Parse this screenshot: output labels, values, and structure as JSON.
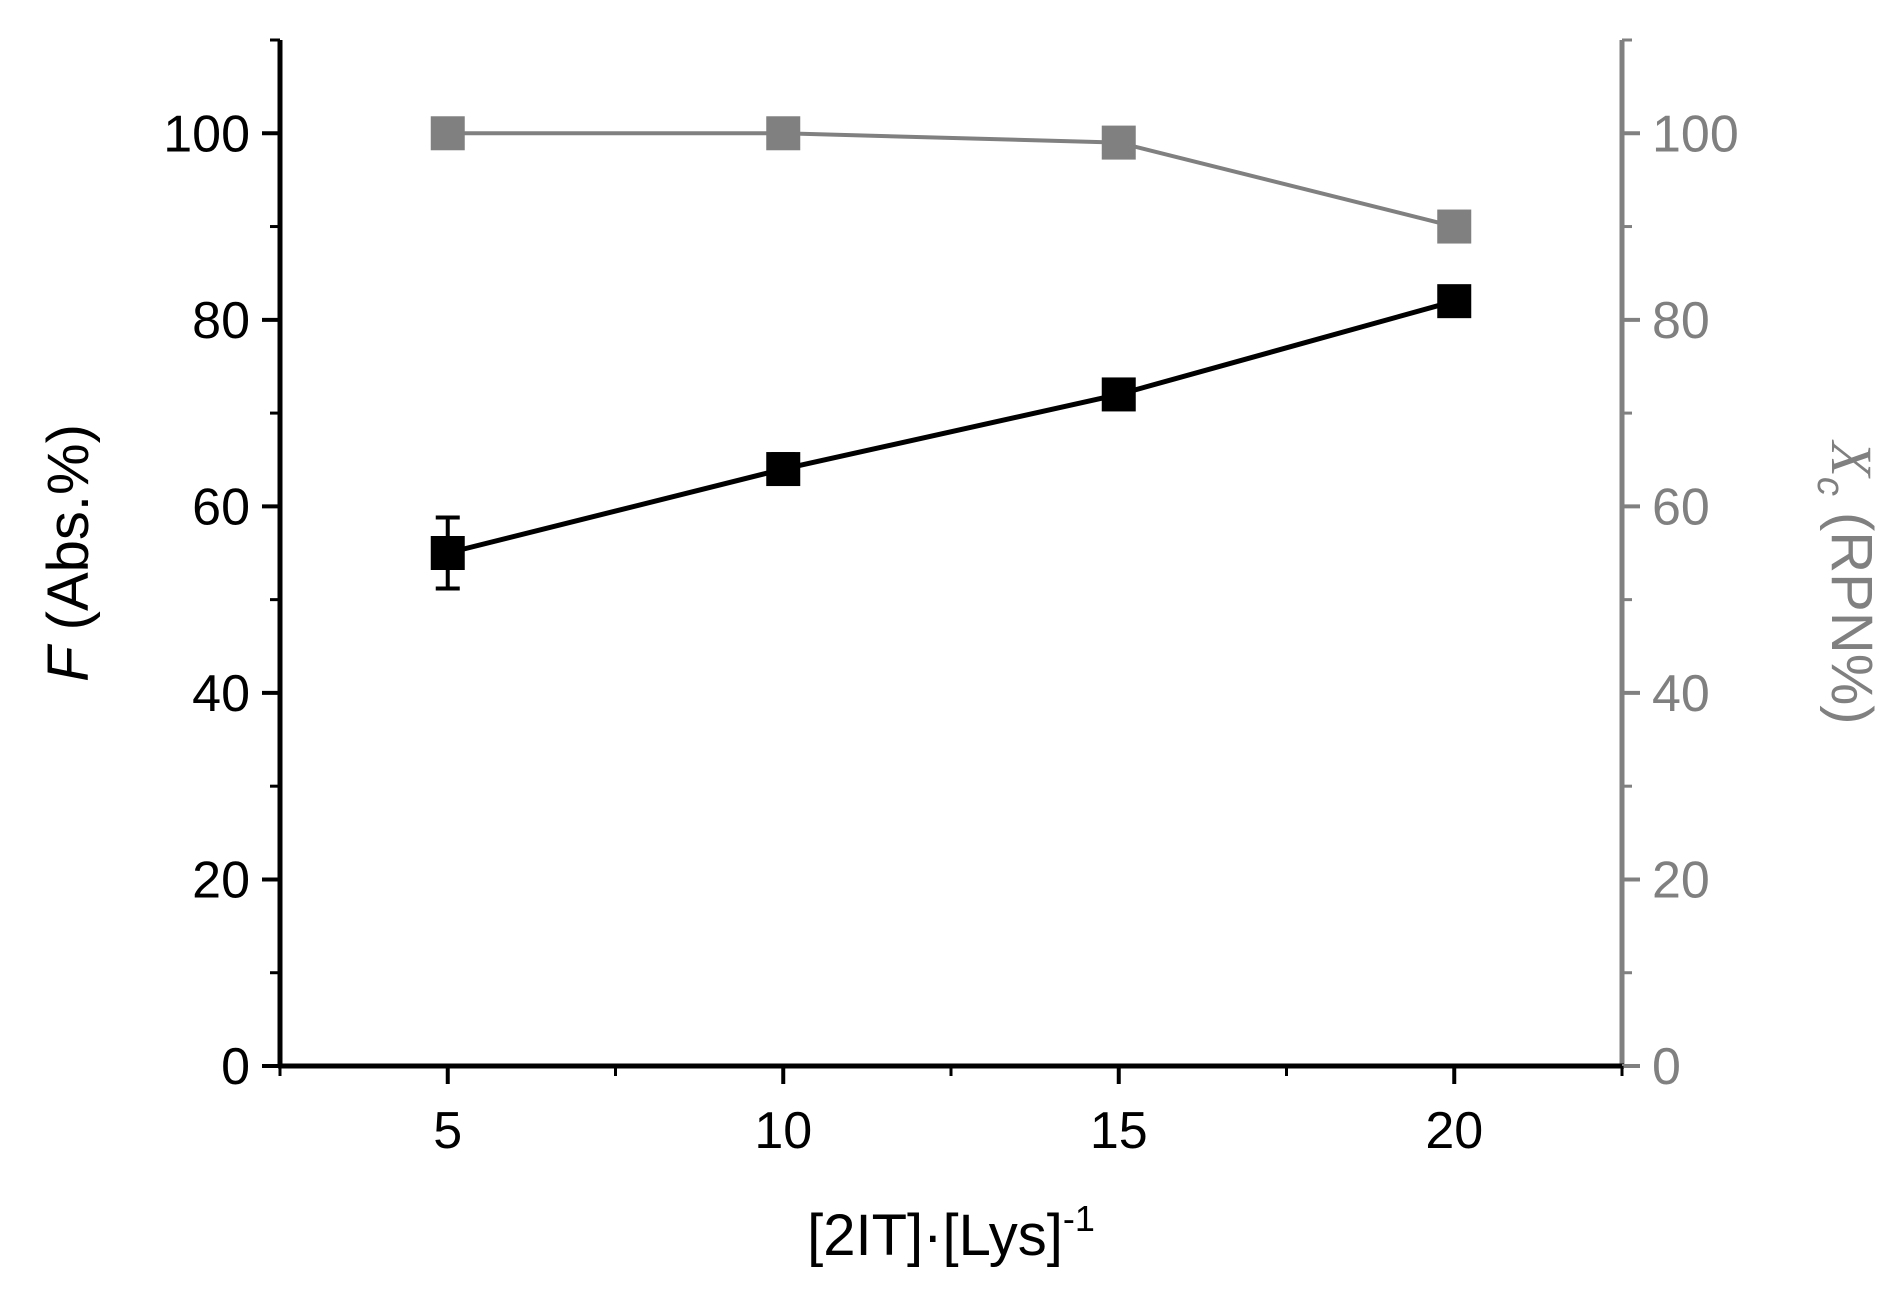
{
  "chart_data": {
    "type": "line",
    "x": [
      5,
      10,
      15,
      20
    ],
    "xlim": [
      2.5,
      22.5
    ],
    "x_ticks": [
      "5",
      "10",
      "15",
      "20"
    ],
    "y_left_ticks": [
      "0",
      "20",
      "40",
      "60",
      "80",
      "100"
    ],
    "y_right_ticks": [
      "0",
      "20",
      "40",
      "60",
      "80",
      "100"
    ],
    "ylim_left": [
      0,
      110
    ],
    "ylim_right": [
      0,
      110
    ],
    "xlabel": {
      "main": "[2IT]·[Lys]",
      "sup": "-1"
    },
    "ylabel_left": {
      "italic": "F",
      "rest": " (Abs.%)"
    },
    "ylabel_right": {
      "italic": "X",
      "sub": "c",
      "rest": " (RPN%)"
    },
    "grid": false,
    "legend": "none",
    "series": [
      {
        "axis": "left",
        "color": "#000000",
        "marker": "square",
        "values": [
          55,
          64,
          72,
          82
        ],
        "errors": [
          3.8,
          1.6,
          1.5,
          1.2
        ]
      },
      {
        "axis": "right",
        "color": "#808080",
        "marker": "square",
        "values": [
          100,
          100,
          99,
          90
        ],
        "errors": [
          0,
          0,
          0,
          0
        ]
      }
    ]
  }
}
